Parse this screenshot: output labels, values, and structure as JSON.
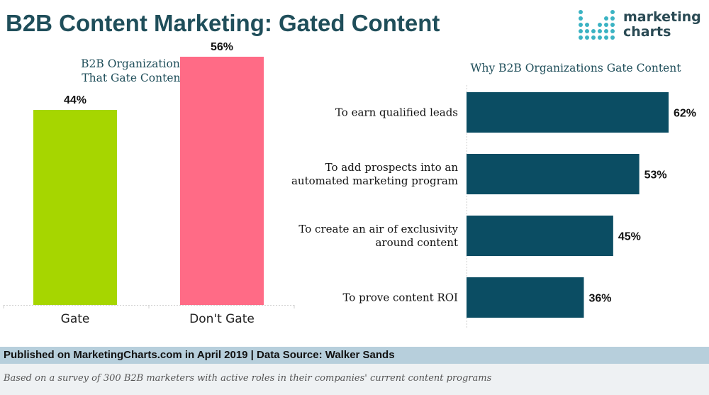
{
  "title": "B2B Content Marketing: Gated Content",
  "logo": {
    "line1": "marketing",
    "line2": "charts"
  },
  "colors": {
    "gate": "#a6d600",
    "dont_gate": "#ff6b86",
    "bars": "#0b4d63",
    "title": "#1f4e5a"
  },
  "chart_data": [
    {
      "type": "bar",
      "title": "B2B Organizations That Gate Content",
      "title_lines": [
        "B2B Organizations",
        "That Gate Content"
      ],
      "categories": [
        "Gate",
        "Don't Gate"
      ],
      "values": [
        44,
        56
      ],
      "value_labels": [
        "44%",
        "56%"
      ],
      "ylim": [
        0,
        70
      ]
    },
    {
      "type": "bar",
      "orientation": "horizontal",
      "title": "Why B2B Organizations Gate Content",
      "categories": [
        [
          "To earn qualified leads"
        ],
        [
          "To add prospects into an",
          "automated marketing program"
        ],
        [
          "To create an air of exclusivity",
          "around content"
        ],
        [
          "To prove content ROI"
        ]
      ],
      "values": [
        62,
        53,
        45,
        36
      ],
      "value_labels": [
        "62%",
        "53%",
        "45%",
        "36%"
      ],
      "xlim": [
        0,
        100
      ]
    }
  ],
  "footer": {
    "source": "Published on MarketingCharts.com in April 2019 | Data Source: Walker Sands",
    "note": "Based on a survey of 300 B2B marketers with active roles in their companies' current content programs"
  }
}
